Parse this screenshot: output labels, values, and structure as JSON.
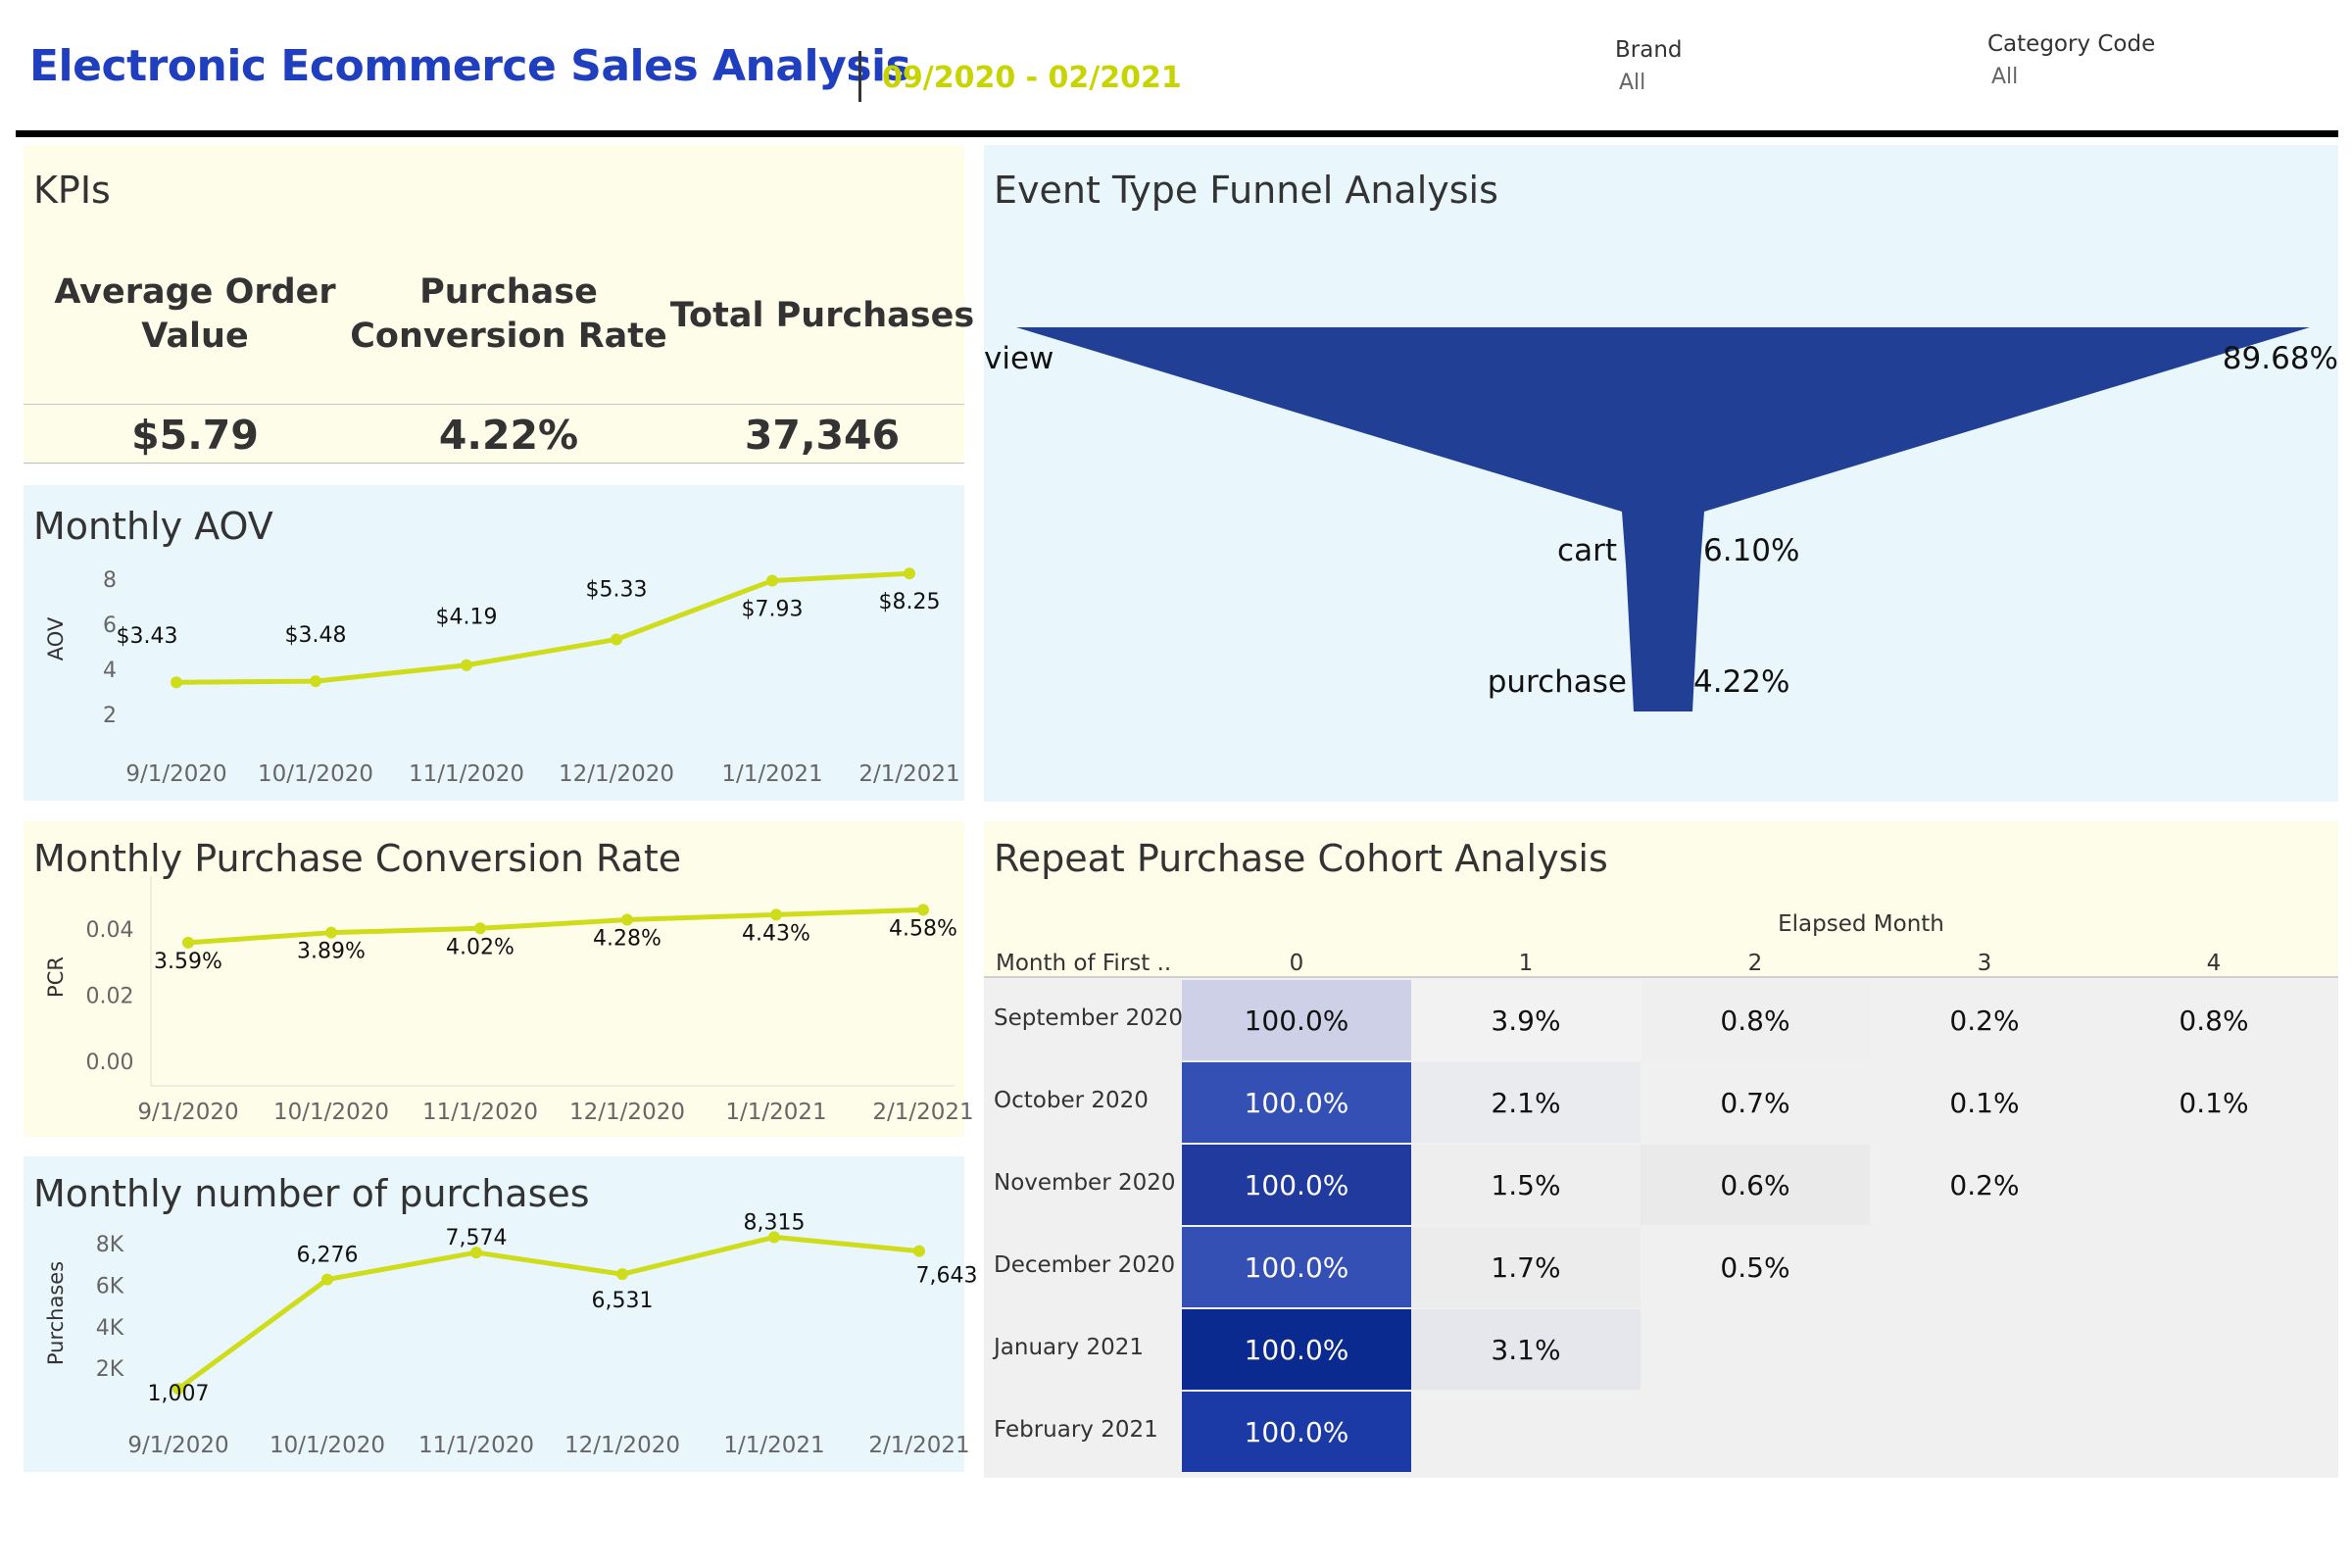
{
  "header": {
    "title": "Electronic Ecommerce Sales Analysis",
    "date_range": "09/2020 - 02/2021",
    "filters": [
      {
        "label": "Brand",
        "value": "All"
      },
      {
        "label": "Category Code",
        "value": "All"
      }
    ]
  },
  "colors": {
    "title": "#1f3fbf",
    "date_range": "#c8d400",
    "line": "#cfdc1a",
    "funnel": "#203f95",
    "yellow_panel": "#fefde9",
    "blue_panel": "#e9f6fc"
  },
  "kpis": {
    "title": "KPIs",
    "items": [
      {
        "label_line1": "Average Order",
        "label_line2": "Value",
        "value": "$5.79"
      },
      {
        "label_line1": "Purchase",
        "label_line2": "Conversion Rate",
        "value": "4.22%"
      },
      {
        "label_line1": "Total Purchases",
        "label_line2": "",
        "value": "37,346"
      }
    ]
  },
  "chart_data": [
    {
      "id": "aov",
      "type": "line",
      "title": "Monthly AOV",
      "ylabel": "AOV",
      "x": [
        "9/1/2020",
        "10/1/2020",
        "11/1/2020",
        "12/1/2020",
        "1/1/2021",
        "2/1/2021"
      ],
      "values": [
        3.43,
        3.48,
        4.19,
        5.33,
        7.93,
        8.25
      ],
      "labels": [
        "$3.43",
        "$3.48",
        "$4.19",
        "$5.33",
        "$7.93",
        "$8.25"
      ],
      "yticks": [
        2,
        4,
        6,
        8
      ],
      "ytick_labels": [
        "2",
        "4",
        "6",
        "8"
      ],
      "ylim": [
        1.4,
        9.3
      ],
      "grid": false
    },
    {
      "id": "pcr",
      "type": "line",
      "title": "Monthly Purchase Conversion Rate",
      "ylabel": "PCR",
      "x": [
        "9/1/2020",
        "10/1/2020",
        "11/1/2020",
        "12/1/2020",
        "1/1/2021",
        "2/1/2021"
      ],
      "values": [
        0.0359,
        0.0389,
        0.0402,
        0.0428,
        0.0443,
        0.0458
      ],
      "labels": [
        "3.59%",
        "3.89%",
        "4.02%",
        "4.28%",
        "4.43%",
        "4.58%"
      ],
      "yticks": [
        0,
        0.02,
        0.04
      ],
      "ytick_labels": [
        "0.00",
        "0.02",
        "0.04"
      ],
      "ylim": [
        -0.002,
        0.053
      ],
      "grid": false
    },
    {
      "id": "purchases",
      "type": "line",
      "title": "Monthly number of purchases",
      "ylabel": "Purchases",
      "x": [
        "9/1/2020",
        "10/1/2020",
        "11/1/2020",
        "12/1/2020",
        "1/1/2021",
        "2/1/2021"
      ],
      "values": [
        1007,
        6276,
        7574,
        6531,
        8315,
        7643
      ],
      "labels": [
        "1,007",
        "6,276",
        "7,574",
        "6,531",
        "8,315",
        "7,643"
      ],
      "yticks": [
        2000,
        4000,
        6000,
        8000
      ],
      "ytick_labels": [
        "2K",
        "4K",
        "6K",
        "8K"
      ],
      "ylim": [
        400,
        8900
      ],
      "grid": false
    },
    {
      "id": "funnel",
      "type": "bar",
      "title": "Event Type Funnel Analysis",
      "categories": [
        "view",
        "cart",
        "purchase"
      ],
      "values": [
        89.68,
        6.1,
        4.22
      ],
      "labels": [
        "89.68%",
        "6.10%",
        "4.22%"
      ]
    },
    {
      "id": "cohort",
      "type": "heatmap",
      "title": "Repeat Purchase Cohort Analysis",
      "col_group_label": "Elapsed Month",
      "row_header": "Month of First ..",
      "columns": [
        "0",
        "1",
        "2",
        "3",
        "4"
      ],
      "rows": [
        "September 2020",
        "October 2020",
        "November 2020",
        "December 2020",
        "January 2021",
        "February 2021"
      ],
      "values": [
        [
          100.0,
          3.9,
          0.8,
          0.2,
          0.8
        ],
        [
          100.0,
          2.1,
          0.7,
          0.1,
          0.1
        ],
        [
          100.0,
          1.5,
          0.6,
          0.2,
          null
        ],
        [
          100.0,
          1.7,
          0.5,
          null,
          null
        ],
        [
          100.0,
          3.1,
          null,
          null,
          null
        ],
        [
          100.0,
          null,
          null,
          null,
          null
        ]
      ],
      "labels": [
        [
          "100.0%",
          "3.9%",
          "0.8%",
          "0.2%",
          "0.8%"
        ],
        [
          "100.0%",
          "2.1%",
          "0.7%",
          "0.1%",
          "0.1%"
        ],
        [
          "100.0%",
          "1.5%",
          "0.6%",
          "0.2%",
          ""
        ],
        [
          "100.0%",
          "1.7%",
          "0.5%",
          "",
          ""
        ],
        [
          "100.0%",
          "3.1%",
          "",
          "",
          ""
        ],
        [
          "100.0%",
          "",
          "",
          "",
          ""
        ]
      ],
      "first_col_colors": [
        "#cdd0e6",
        "#3450b5",
        "#203a9e",
        "#3450b5",
        "#0b2a8f",
        "#1c3aa6"
      ],
      "cell_colors": [
        [
          null,
          "#f2f2f2",
          "#efefef",
          "#f0f0f0",
          "#f0f0f0"
        ],
        [
          null,
          "#eaebef",
          "#f0f0f0",
          "#f0f0f0",
          "#f0f0f0"
        ],
        [
          null,
          "#eeeeee",
          "#eaeaea",
          "#f0f0f0",
          "#f0f0f0"
        ],
        [
          null,
          "#ececec",
          "#f0f0f0",
          "#f0f0f0",
          "#f0f0f0"
        ],
        [
          null,
          "#e6e7ec",
          "#f0f0f0",
          "#f0f0f0",
          "#f0f0f0"
        ],
        [
          null,
          "#f0f0f0",
          "#f0f0f0",
          "#f0f0f0",
          "#f0f0f0"
        ]
      ]
    }
  ]
}
